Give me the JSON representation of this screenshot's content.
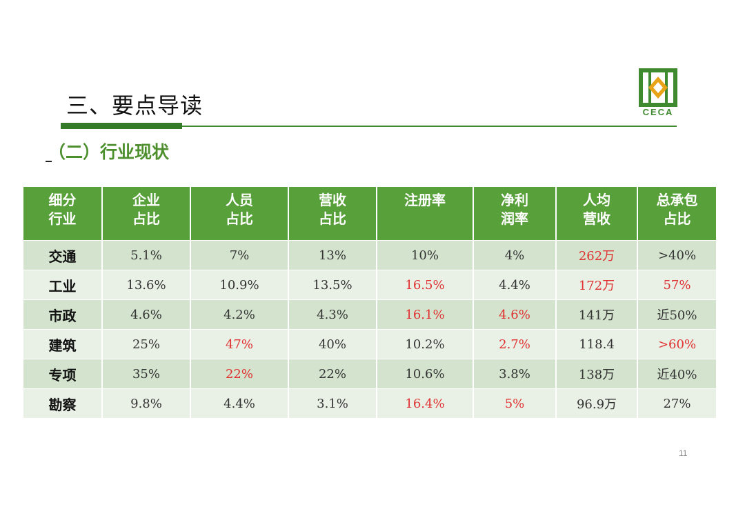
{
  "header": {
    "title": "三、要点导读",
    "subtitle": "（二）行业现状",
    "logo_text": "CECA"
  },
  "colors": {
    "brand_green": "#3f8a2e",
    "header_green": "#58a03a",
    "highlight_red": "#e03030"
  },
  "table": {
    "columns": [
      "细分\n行业",
      "企业\n占比",
      "人员\n占比",
      "营收\n占比",
      "注册率",
      "净利\n润率",
      "人均\n营收",
      "总承包\n占比"
    ],
    "rows": [
      {
        "label": "交通",
        "cells": [
          {
            "v": "5.1%",
            "hl": false
          },
          {
            "v": "7%",
            "hl": false
          },
          {
            "v": "13%",
            "hl": false
          },
          {
            "v": "10%",
            "hl": false
          },
          {
            "v": "4%",
            "hl": false
          },
          {
            "v": "262万",
            "hl": true
          },
          {
            "v": ">40%",
            "hl": false
          }
        ]
      },
      {
        "label": "工业",
        "cells": [
          {
            "v": "13.6%",
            "hl": false
          },
          {
            "v": "10.9%",
            "hl": false
          },
          {
            "v": "13.5%",
            "hl": false
          },
          {
            "v": "16.5%",
            "hl": true
          },
          {
            "v": "4.4%",
            "hl": false
          },
          {
            "v": "172万",
            "hl": true
          },
          {
            "v": "57%",
            "hl": true
          }
        ]
      },
      {
        "label": "市政",
        "cells": [
          {
            "v": "4.6%",
            "hl": false
          },
          {
            "v": "4.2%",
            "hl": false
          },
          {
            "v": "4.3%",
            "hl": false
          },
          {
            "v": "16.1%",
            "hl": true
          },
          {
            "v": "4.6%",
            "hl": true
          },
          {
            "v": "141万",
            "hl": false
          },
          {
            "v": "近50%",
            "hl": false
          }
        ]
      },
      {
        "label": "建筑",
        "cells": [
          {
            "v": "25%",
            "hl": false
          },
          {
            "v": "47%",
            "hl": true
          },
          {
            "v": "40%",
            "hl": false
          },
          {
            "v": "10.2%",
            "hl": false
          },
          {
            "v": "2.7%",
            "hl": true
          },
          {
            "v": "118.4",
            "hl": false
          },
          {
            "v": ">60%",
            "hl": true
          }
        ]
      },
      {
        "label": "专项",
        "cells": [
          {
            "v": "35%",
            "hl": false
          },
          {
            "v": "22%",
            "hl": true
          },
          {
            "v": "22%",
            "hl": false
          },
          {
            "v": "10.6%",
            "hl": false
          },
          {
            "v": "3.8%",
            "hl": false
          },
          {
            "v": "138万",
            "hl": false
          },
          {
            "v": "近40%",
            "hl": false
          }
        ]
      },
      {
        "label": "勘察",
        "cells": [
          {
            "v": "9.8%",
            "hl": false
          },
          {
            "v": "4.4%",
            "hl": false
          },
          {
            "v": "3.1%",
            "hl": false
          },
          {
            "v": "16.4%",
            "hl": true
          },
          {
            "v": "5%",
            "hl": true
          },
          {
            "v": "96.9万",
            "hl": false
          },
          {
            "v": "27%",
            "hl": false
          }
        ]
      }
    ]
  },
  "footer": {
    "page_number": "11"
  }
}
